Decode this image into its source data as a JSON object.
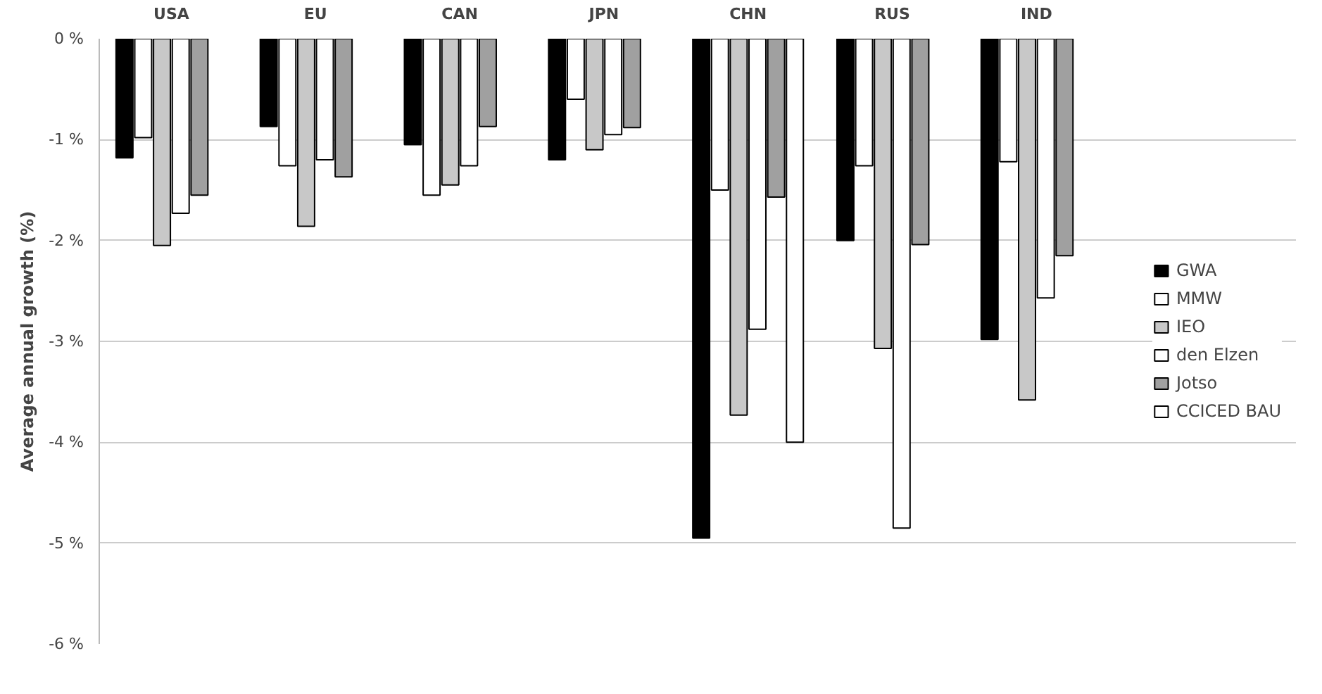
{
  "chart_data": {
    "type": "bar",
    "ylabel": "Average annual growth (%)",
    "categories": [
      "USA",
      "EU",
      "CAN",
      "JPN",
      "CHN",
      "RUS",
      "IND"
    ],
    "series": [
      {
        "name": "GWA",
        "color": "#000000",
        "values": [
          -1.18,
          -0.87,
          -1.05,
          -1.2,
          -4.95,
          -2.0,
          -2.98
        ]
      },
      {
        "name": "MMW",
        "color": "#ffffff",
        "values": [
          -0.98,
          -1.26,
          -1.55,
          -0.6,
          -1.5,
          -1.26,
          -1.22
        ]
      },
      {
        "name": "IEO",
        "color": "#c8c8c8",
        "values": [
          -2.05,
          -1.86,
          -1.45,
          -1.1,
          -3.73,
          -3.07,
          -3.58
        ]
      },
      {
        "name": "den Elzen",
        "color": "#ffffff",
        "values": [
          -1.73,
          -1.2,
          -1.26,
          -0.95,
          -2.88,
          -4.85,
          -2.57
        ]
      },
      {
        "name": "Jotso",
        "color": "#a0a0a0",
        "values": [
          -1.55,
          -1.37,
          -0.87,
          -0.88,
          -1.57,
          -2.04,
          -2.15
        ]
      },
      {
        "name": "CCICED BAU",
        "color": "#ffffff",
        "values": [
          null,
          null,
          null,
          null,
          -4.0,
          null,
          null
        ]
      }
    ],
    "ylim": [
      -6,
      0
    ],
    "yticks": [
      {
        "value": 0,
        "label": "0 %"
      },
      {
        "value": -1,
        "label": "-1 %"
      },
      {
        "value": -2,
        "label": "-2 %"
      },
      {
        "value": -3,
        "label": "-3 %"
      },
      {
        "value": -4,
        "label": "-4 %"
      },
      {
        "value": -5,
        "label": "-5 %"
      },
      {
        "value": -6,
        "label": "-6 %"
      }
    ],
    "grid": "y",
    "legend": "right"
  }
}
